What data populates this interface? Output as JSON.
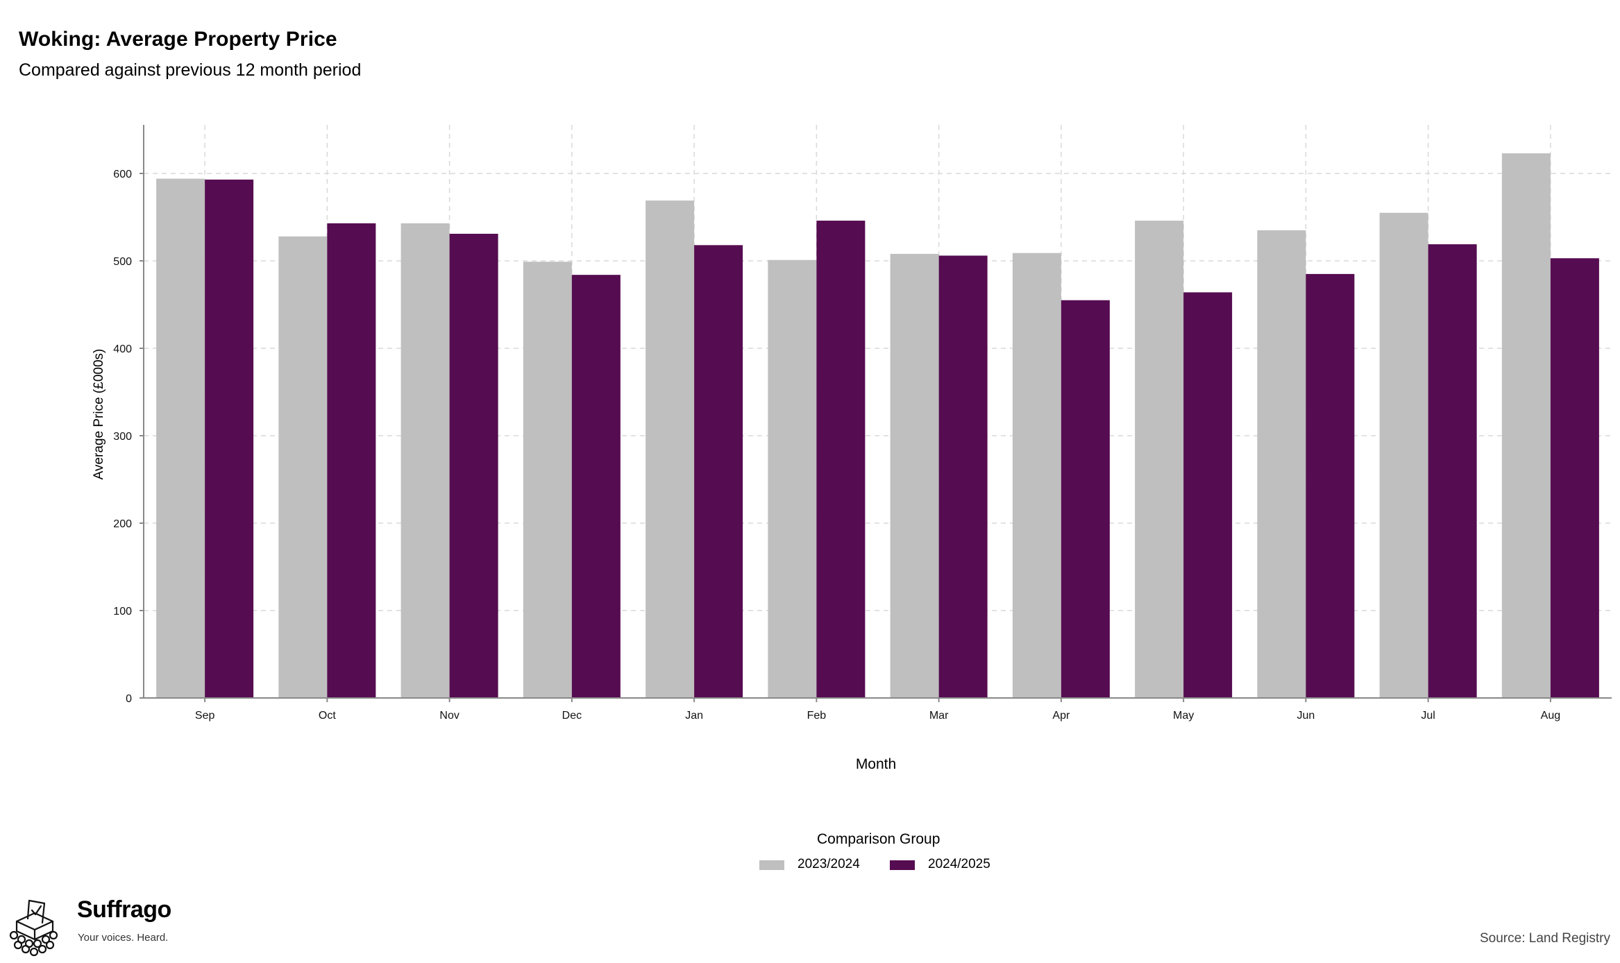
{
  "header": {
    "title": "Woking: Average Property Price",
    "subtitle": "Compared against previous 12 month period"
  },
  "chart_data": {
    "type": "bar",
    "title": "Woking: Average Property Price",
    "subtitle": "Compared against previous 12 month period",
    "xlabel": "Month",
    "ylabel": "Average Price (£000s)",
    "categories": [
      "Sep",
      "Oct",
      "Nov",
      "Dec",
      "Jan",
      "Feb",
      "Mar",
      "Apr",
      "May",
      "Jun",
      "Jul",
      "Aug"
    ],
    "series": [
      {
        "name": "2023/2024",
        "color": "#bfbfbf",
        "values": [
          594,
          528,
          543,
          499,
          569,
          501,
          508,
          509,
          546,
          535,
          555,
          623
        ]
      },
      {
        "name": "2024/2025",
        "color": "#560c51",
        "values": [
          593,
          543,
          531,
          484,
          518,
          546,
          506,
          455,
          464,
          485,
          519,
          503
        ]
      }
    ],
    "ylim": [
      0,
      655
    ],
    "yticks": [
      0,
      100,
      200,
      300,
      400,
      500,
      600
    ],
    "grid": true,
    "legend": {
      "title": "Comparison Group",
      "position": "bottom-center"
    }
  },
  "footer": {
    "brand_name": "Suffrago",
    "brand_tagline": "Your voices. Heard.",
    "source": "Source: Land Registry"
  },
  "icons": {
    "logo": "ballot-box-icon"
  }
}
